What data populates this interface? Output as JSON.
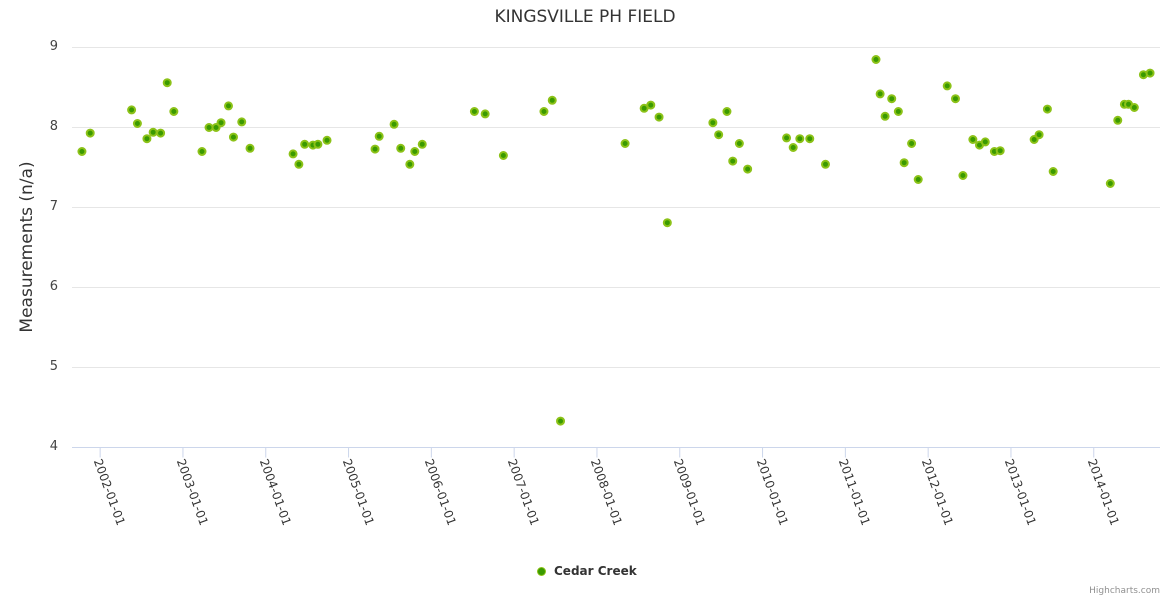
{
  "chart_data": {
    "type": "scatter",
    "title": "KINGSVILLE PH FIELD",
    "xlabel": "",
    "ylabel": "Measurements (n/a)",
    "ylim": [
      4,
      9
    ],
    "xlim": [
      2001.66,
      2014.8
    ],
    "y_ticks": [
      "4",
      "5",
      "6",
      "7",
      "8",
      "9"
    ],
    "x_ticks": [
      "2002-01-01",
      "2003-01-01",
      "2004-01-01",
      "2005-01-01",
      "2006-01-01",
      "2007-01-01",
      "2008-01-01",
      "2009-01-01",
      "2010-01-01",
      "2011-01-01",
      "2012-01-01",
      "2013-01-01",
      "2014-01-01"
    ],
    "grid": true,
    "legend": {
      "position": "bottom-center",
      "entries": [
        "Cedar Creek"
      ]
    },
    "series": [
      {
        "name": "Cedar Creek",
        "color": "#3a9a00",
        "outline": "#8cc218",
        "x": [
          2001.78,
          2001.88,
          2002.38,
          2002.45,
          2002.565,
          2002.64,
          2002.73,
          2002.81,
          2002.89,
          2003.23,
          2003.315,
          2003.4,
          2003.46,
          2003.55,
          2003.61,
          2003.71,
          2003.81,
          2004.33,
          2004.4,
          2004.47,
          2004.57,
          2004.63,
          2004.74,
          2005.32,
          2005.37,
          2005.55,
          2005.63,
          2005.74,
          2005.8,
          2005.89,
          2006.52,
          2006.65,
          2006.87,
          2007.36,
          2007.46,
          2007.56,
          2008.34,
          2008.57,
          2008.65,
          2008.75,
          2008.85,
          2009.4,
          2009.47,
          2009.57,
          2009.64,
          2009.72,
          2009.82,
          2010.29,
          2010.37,
          2010.45,
          2010.57,
          2010.76,
          2011.37,
          2011.42,
          2011.48,
          2011.56,
          2011.64,
          2011.71,
          2011.8,
          2011.88,
          2012.23,
          2012.33,
          2012.42,
          2012.54,
          2012.62,
          2012.69,
          2012.8,
          2012.87,
          2013.28,
          2013.34,
          2013.44,
          2013.51,
          2014.2,
          2014.29,
          2014.37,
          2014.42,
          2014.49,
          2014.6,
          2014.68
        ],
        "y": [
          7.7,
          7.93,
          8.22,
          8.05,
          7.86,
          7.94,
          7.93,
          8.56,
          8.2,
          7.7,
          8.0,
          8.0,
          8.06,
          8.27,
          7.88,
          8.07,
          7.74,
          7.67,
          7.54,
          7.79,
          7.78,
          7.79,
          7.84,
          7.73,
          7.89,
          8.04,
          7.74,
          7.54,
          7.7,
          7.79,
          8.2,
          8.17,
          7.65,
          8.2,
          8.34,
          4.33,
          7.8,
          8.24,
          8.28,
          8.13,
          6.81,
          8.06,
          7.91,
          8.2,
          7.58,
          7.8,
          7.48,
          7.87,
          7.75,
          7.86,
          7.86,
          7.54,
          8.85,
          8.42,
          8.14,
          8.36,
          8.2,
          7.56,
          7.8,
          7.35,
          8.52,
          8.36,
          7.4,
          7.85,
          7.78,
          7.82,
          7.7,
          7.71,
          7.85,
          7.91,
          8.23,
          7.45,
          7.3,
          8.09,
          8.29,
          8.29,
          8.25,
          8.66,
          8.68
        ]
      }
    ],
    "credits": "Highcharts.com"
  }
}
